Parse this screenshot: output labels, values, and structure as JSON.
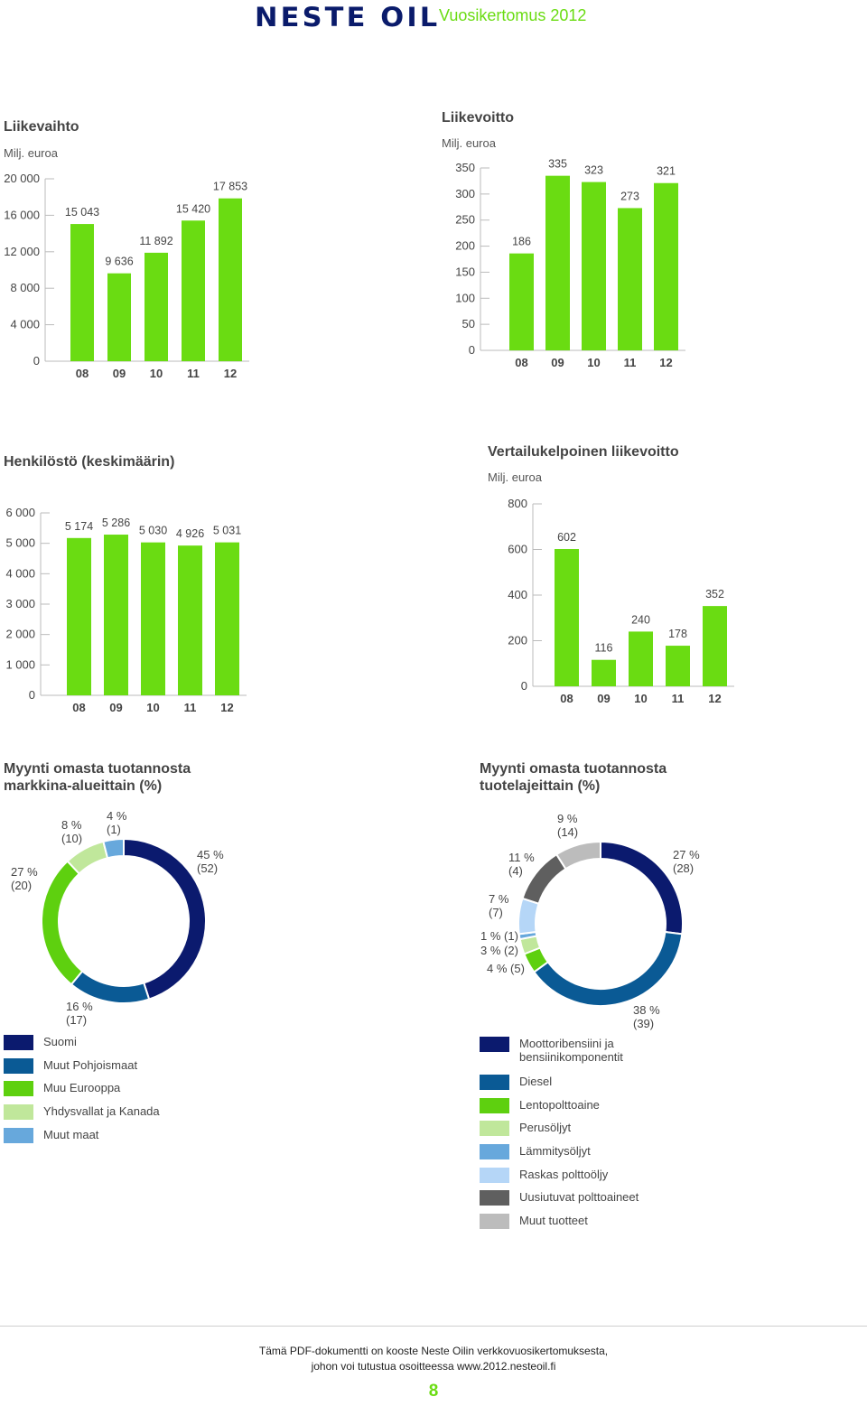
{
  "header": {
    "logo_text": "NESTE OIL",
    "report_title": "Vuosikertomus 2012"
  },
  "colors": {
    "bar": "#6adc12",
    "axis": "#bbbbbb",
    "donut": [
      "#0b1a6e",
      "#0a5a95",
      "#5ed00f",
      "#c0e79b",
      "#67a8dc",
      "#b5d6f7",
      "#5f5f5f",
      "#bcbcbc"
    ]
  },
  "chart_data": [
    {
      "type": "bar",
      "title": "Liikevaihto",
      "ylabel": "Milj. euroa",
      "categories": [
        "08",
        "09",
        "10",
        "11",
        "12"
      ],
      "values": [
        15043,
        9636,
        11892,
        15420,
        17853
      ],
      "value_labels": [
        "15 043",
        "9 636",
        "11 892",
        "15 420",
        "17 853"
      ],
      "yticks": [
        "0",
        "4 000",
        "8 000",
        "12 000",
        "16 000",
        "20 000"
      ],
      "ylim": [
        0,
        20000
      ]
    },
    {
      "type": "bar",
      "title": "Liikevoitto",
      "ylabel": "Milj. euroa",
      "categories": [
        "08",
        "09",
        "10",
        "11",
        "12"
      ],
      "values": [
        186,
        335,
        323,
        273,
        321
      ],
      "value_labels": [
        "186",
        "335",
        "323",
        "273",
        "321"
      ],
      "yticks": [
        "0",
        "50",
        "100",
        "150",
        "200",
        "250",
        "300",
        "350"
      ],
      "ylim": [
        0,
        350
      ]
    },
    {
      "type": "bar",
      "title": "Henkilöstö (keskimäärin)",
      "ylabel": "",
      "categories": [
        "08",
        "09",
        "10",
        "11",
        "12"
      ],
      "values": [
        5174,
        5286,
        5030,
        4926,
        5031
      ],
      "value_labels": [
        "5 174",
        "5 286",
        "5 030",
        "4 926",
        "5 031"
      ],
      "yticks": [
        "0",
        "1 000",
        "2 000",
        "3 000",
        "4 000",
        "5 000",
        "6 000"
      ],
      "ylim": [
        0,
        6000
      ]
    },
    {
      "type": "bar",
      "title": "Vertailukelpoinen liikevoitto",
      "ylabel": "Milj. euroa",
      "categories": [
        "08",
        "09",
        "10",
        "11",
        "12"
      ],
      "values": [
        602,
        116,
        240,
        178,
        352
      ],
      "value_labels": [
        "602",
        "116",
        "240",
        "178",
        "352"
      ],
      "yticks": [
        "0",
        "200",
        "400",
        "600",
        "800"
      ],
      "ylim": [
        0,
        800
      ]
    },
    {
      "type": "pie",
      "title_lines": [
        "Myynti omasta tuotannosta",
        "markkina-alueittain (%)"
      ],
      "labels": [
        "Suomi",
        "Muut Pohjoismaat",
        "Muu Eurooppa",
        "Yhdysvallat ja Kanada",
        "Muut maat"
      ],
      "values": [
        45,
        16,
        27,
        8,
        4
      ],
      "previous_values": [
        52,
        17,
        20,
        10,
        1
      ],
      "pct_labels": [
        "45 %",
        "16 %",
        "27 %",
        "8 %",
        "4 %"
      ],
      "prev_labels": [
        "(52)",
        "(17)",
        "(20)",
        "(10)",
        "(1)"
      ]
    },
    {
      "type": "pie",
      "title_lines": [
        "Myynti omasta tuotannosta",
        "tuotelajeittain (%)"
      ],
      "labels": [
        "Moottoribensiini ja bensiinikomponentit",
        "Diesel",
        "Lentopolttoaine",
        "Perusöljyt",
        "Lämmitysöljyt",
        "Raskas polttoöljy",
        "Uusiutuvat polttoaineet",
        "Muut tuotteet"
      ],
      "legend_lines": [
        [
          "Moottoribensiini ja",
          "bensiinikomponentit"
        ],
        [
          "Diesel"
        ],
        [
          "Lentopolttoaine"
        ],
        [
          "Perusöljyt"
        ],
        [
          "Lämmitysöljyt"
        ],
        [
          "Raskas polttoöljy"
        ],
        [
          "Uusiutuvat polttoaineet"
        ],
        [
          "Muut tuotteet"
        ]
      ],
      "values": [
        27,
        38,
        4,
        3,
        1,
        7,
        11,
        9
      ],
      "previous_values": [
        28,
        39,
        5,
        2,
        1,
        7,
        4,
        14
      ],
      "pct_labels": [
        "27 %",
        "38 %",
        "4 % (5)",
        "3 % (2)",
        "1 % (1)",
        "7 %",
        "11 %",
        "9 %"
      ],
      "prev_labels": [
        "(28)",
        "(39)",
        "",
        "",
        "",
        "(7)",
        "(4)",
        "(14)"
      ]
    }
  ],
  "footer": {
    "line1": "Tämä PDF-dokumentti on kooste Neste Oilin verkkovuosikertomuksesta,",
    "line2": "johon voi tutustua osoitteessa www.2012.nesteoil.fi",
    "page_number": "8"
  }
}
